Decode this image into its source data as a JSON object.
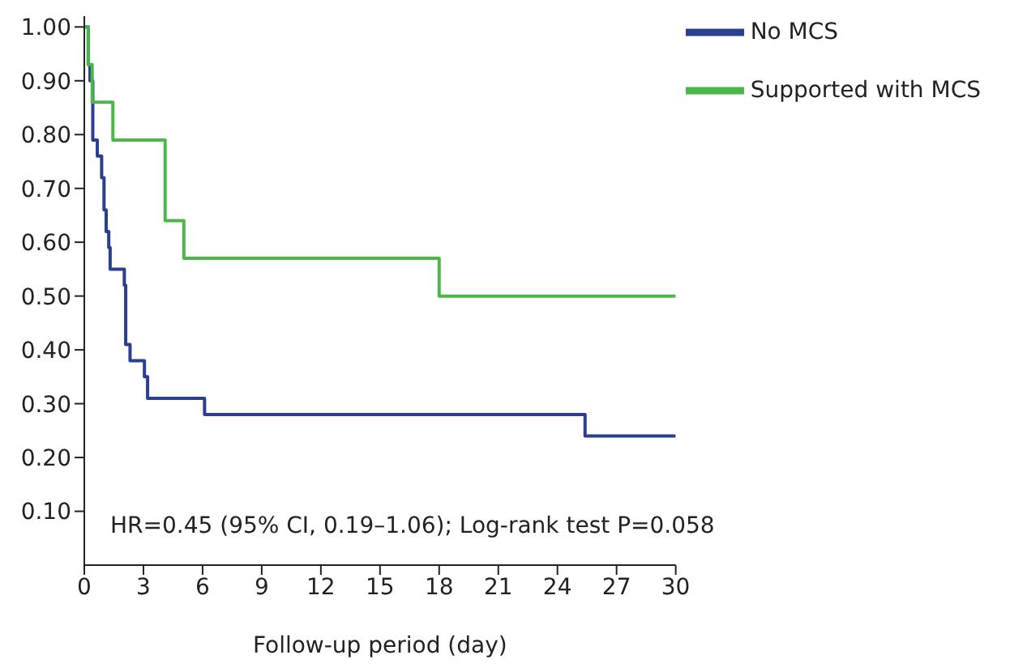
{
  "chart_data": {
    "type": "step",
    "xlabel": "Follow-up period (day)",
    "series": [
      {
        "name": "No MCS",
        "color": "#2b3f8f",
        "x": [
          0,
          0.2,
          0.29,
          0.43,
          0.66,
          0.88,
          1.0,
          1.11,
          1.24,
          1.31,
          2.03,
          2.1,
          2.32,
          3.05,
          3.21,
          6.1,
          25.4,
          30
        ],
        "values": [
          1.0,
          0.93,
          0.9,
          0.79,
          0.76,
          0.72,
          0.66,
          0.62,
          0.59,
          0.55,
          0.52,
          0.41,
          0.38,
          0.35,
          0.31,
          0.28,
          0.24,
          0.24
        ]
      },
      {
        "name": "Supported with MCS",
        "color": "#4bb74b",
        "x": [
          0,
          0.2,
          0.4,
          1.45,
          4.1,
          5.05,
          18,
          30
        ],
        "values": [
          1.0,
          0.93,
          0.86,
          0.79,
          0.64,
          0.57,
          0.5,
          0.5
        ]
      }
    ],
    "xlim": [
      0,
      30
    ],
    "xticks": [
      0,
      3,
      6,
      9,
      12,
      15,
      18,
      21,
      24,
      27,
      30
    ],
    "ylim": [
      0,
      1.02
    ],
    "yticks": [
      {
        "value": 0.1,
        "label": "0.10"
      },
      {
        "value": 0.2,
        "label": "0.20"
      },
      {
        "value": 0.3,
        "label": "0.30"
      },
      {
        "value": 0.4,
        "label": "0.40"
      },
      {
        "value": 0.5,
        "label": "0.50"
      },
      {
        "value": 0.6,
        "label": "0.60"
      },
      {
        "value": 0.7,
        "label": "0.70"
      },
      {
        "value": 0.8,
        "label": "0.80"
      },
      {
        "value": 0.9,
        "label": "0.90"
      },
      {
        "value": 1.0,
        "label": "1.00"
      }
    ],
    "annotations": [
      "HR=0.45 (95% CI, 0.19–1.06); Log-rank test P=0.058"
    ],
    "grid": false,
    "legend": "top right",
    "marker": "none",
    "line_style": "solid"
  }
}
